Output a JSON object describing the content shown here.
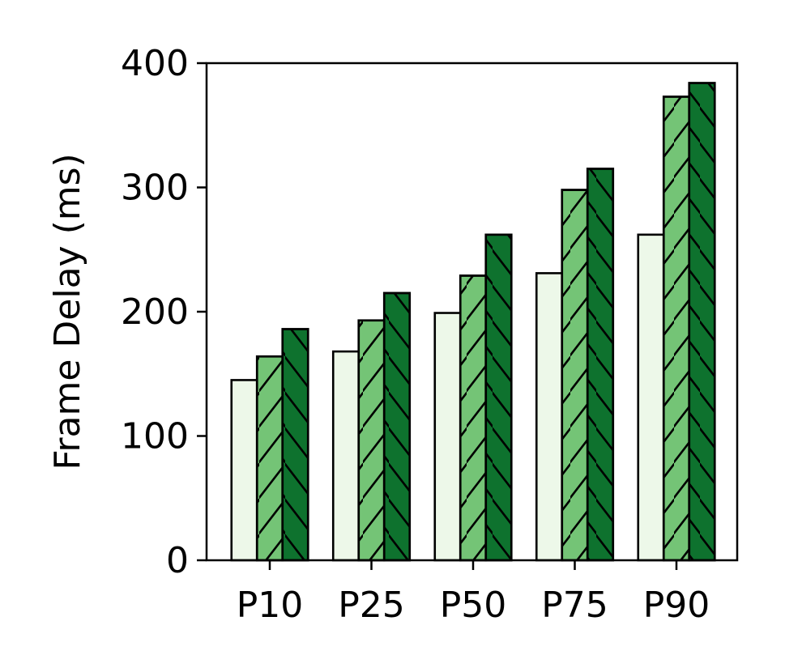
{
  "chart_data": {
    "type": "bar",
    "title": "",
    "xlabel": "",
    "ylabel": "Frame Delay (ms)",
    "ylim": [
      0,
      400
    ],
    "yticks": [
      "0",
      "100",
      "200",
      "300",
      "400"
    ],
    "categories": [
      "P10",
      "P25",
      "P50",
      "P75",
      "P90"
    ],
    "series": [
      {
        "values": [
          145,
          168,
          199,
          231,
          262
        ],
        "color": "#edf8e9",
        "hatch": "none"
      },
      {
        "values": [
          164,
          193,
          229,
          298,
          373
        ],
        "color": "#74c476",
        "hatch": "forward-diagonal"
      },
      {
        "values": [
          186,
          215,
          262,
          315,
          384
        ],
        "color": "#0e722e",
        "hatch": "backward-diagonal"
      }
    ],
    "grid": false,
    "legend": "none"
  }
}
